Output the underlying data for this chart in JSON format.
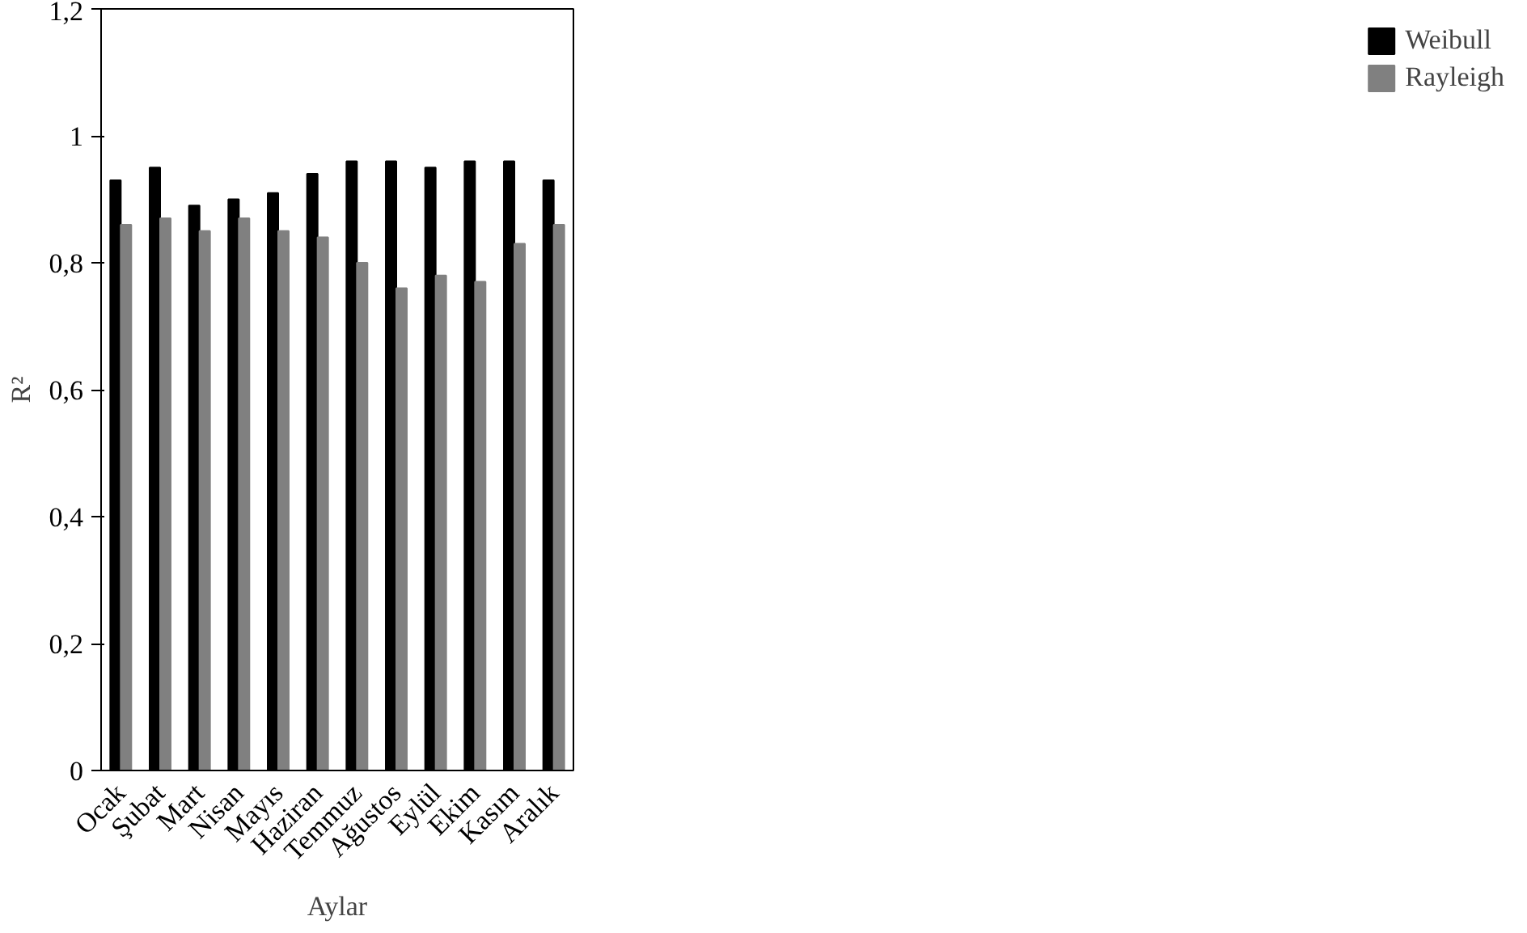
{
  "chart_data": {
    "type": "bar",
    "xlabel": "Aylar",
    "ylabel": "R²",
    "categories": [
      "Ocak",
      "Şubat",
      "Mart",
      "Nisan",
      "Mayıs",
      "Haziran",
      "Temmuz",
      "Ağustos",
      "Eylül",
      "Ekim",
      "Kasım",
      "Aralık"
    ],
    "series": [
      {
        "name": "Weibull",
        "color": "#000000",
        "values": [
          0.93,
          0.95,
          0.89,
          0.9,
          0.91,
          0.94,
          0.96,
          0.96,
          0.95,
          0.96,
          0.96,
          0.93
        ]
      },
      {
        "name": "Rayleigh",
        "color": "#808080",
        "values": [
          0.86,
          0.87,
          0.85,
          0.87,
          0.85,
          0.84,
          0.8,
          0.76,
          0.78,
          0.77,
          0.83,
          0.86
        ]
      }
    ],
    "ylim": [
      0,
      1.2
    ],
    "yticks": [
      0,
      {
        "value": 0.2,
        "label": "0,2"
      },
      {
        "value": 0.4,
        "label": "0,4"
      },
      {
        "value": 0.6,
        "label": "0,6"
      },
      {
        "value": 0.8,
        "label": "0,8"
      },
      1,
      {
        "value": 1.2,
        "label": "1,2"
      }
    ],
    "grid": false,
    "legend": "right"
  }
}
